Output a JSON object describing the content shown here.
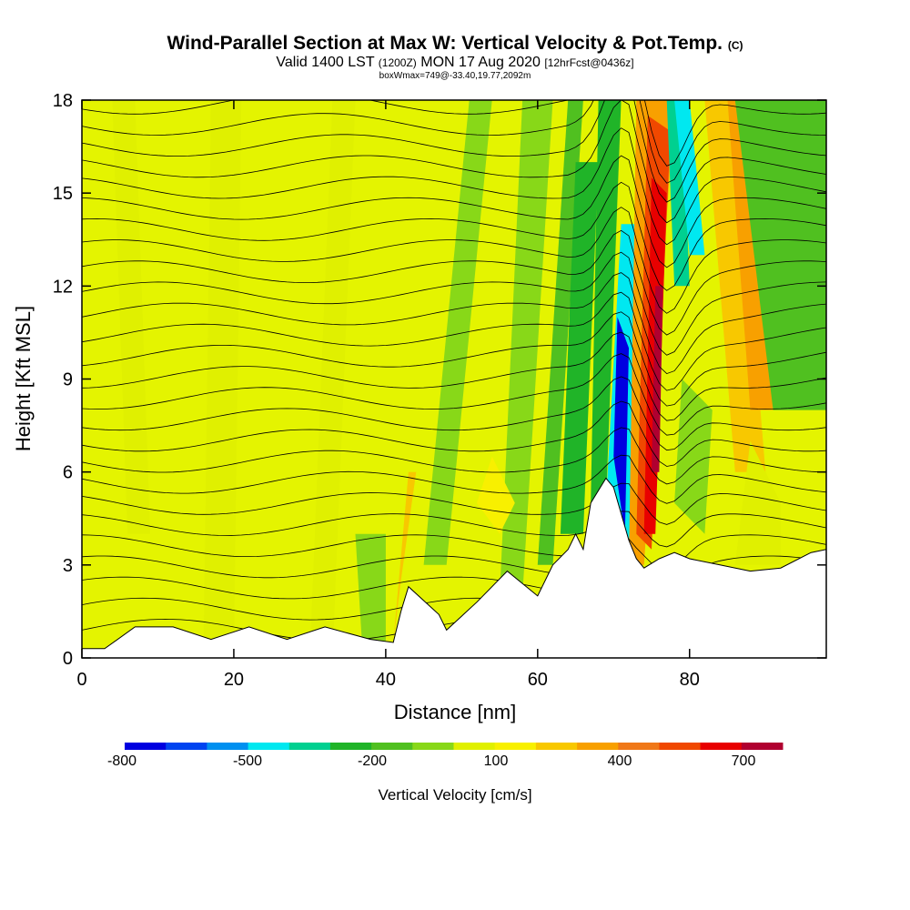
{
  "header": {
    "title": "Wind-Parallel Section at Max W: Vertical Velocity & Pot.Temp.",
    "copyright": "(C)",
    "valid_prefix": "Valid 1400 LST",
    "valid_utc": "(1200Z)",
    "valid_date": "MON 17 Aug 2020",
    "forecast": "[12hrFcst@0436z]",
    "box_info": "boxWmax=749@-33.40,19.77,2092m"
  },
  "chart_data": {
    "type": "heatmap",
    "title": "Wind-Parallel Section at Max W: Vertical Velocity & Pot.Temp.",
    "xlabel": "Distance [nm]",
    "ylabel": "Height [Kft MSL]",
    "xlim": [
      0,
      98
    ],
    "ylim": [
      0,
      18
    ],
    "x_ticks": [
      "0",
      "20",
      "40",
      "60",
      "80"
    ],
    "y_ticks": [
      "0",
      "3",
      "6",
      "9",
      "12",
      "15",
      "18"
    ],
    "colorbar": {
      "label": "Vertical Velocity [cm/s]",
      "tick_labels": [
        "-800",
        "-500",
        "-200",
        "100",
        "400",
        "700"
      ],
      "levels": [
        -800,
        -700,
        -600,
        -500,
        -400,
        -300,
        -200,
        -100,
        0,
        100,
        200,
        300,
        400,
        500,
        600,
        700,
        800
      ],
      "colors": [
        "#0000e0",
        "#0044f0",
        "#0090f0",
        "#00e8f0",
        "#00d090",
        "#20b428",
        "#50c020",
        "#88d818",
        "#e0f000",
        "#f8f000",
        "#f8c800",
        "#f8a000",
        "#f07818",
        "#f04800",
        "#e80000",
        "#b00030"
      ]
    },
    "updraft_core": {
      "x_center_nm": 76,
      "height_range_kft": [
        4.5,
        18
      ],
      "max_w_cm_s": 749
    },
    "downdraft_core": {
      "x_center_nm": 71,
      "height_range_kft": [
        3,
        13
      ],
      "min_w_cm_s": -800
    },
    "terrain_kft": {
      "x": [
        0,
        3,
        7,
        12,
        17,
        22,
        27,
        32,
        38,
        41,
        42,
        43,
        47,
        48,
        52,
        56,
        60,
        62,
        64,
        65,
        66,
        67,
        69,
        70,
        72,
        73,
        74,
        76,
        78,
        80,
        84,
        88,
        92,
        96,
        98
      ],
      "y": [
        0.3,
        0.3,
        1.0,
        1.0,
        0.6,
        1.0,
        0.6,
        1.0,
        0.6,
        0.5,
        1.5,
        2.3,
        1.4,
        0.9,
        1.8,
        2.8,
        2.0,
        3.0,
        3.5,
        4.0,
        3.5,
        5.0,
        5.8,
        5.5,
        3.8,
        3.2,
        2.9,
        3.2,
        3.4,
        3.2,
        3.0,
        2.8,
        2.9,
        3.4,
        3.5
      ]
    },
    "potential_temperature_isentropes": {
      "count": 26,
      "units": "K"
    }
  }
}
